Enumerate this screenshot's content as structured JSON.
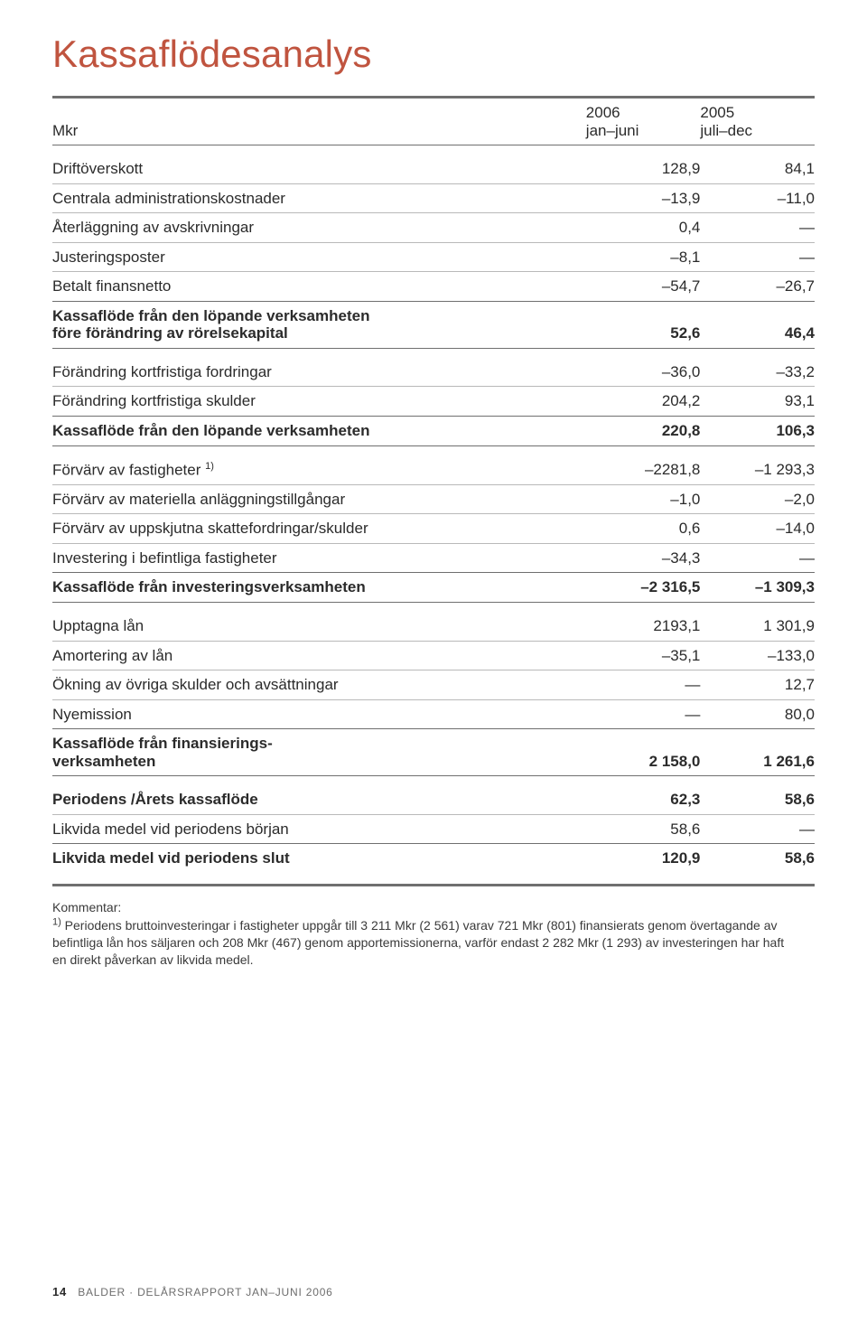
{
  "title_color": "#c0543f",
  "text_color": "#2b2b2b",
  "rule_color": "#6f6f6f",
  "row_rule_color": "#b9b9b9",
  "title": "Kassaflödesanalys",
  "header": {
    "unit": "Mkr",
    "col1_year": "2006",
    "col1_period": "jan–juni",
    "col2_year": "2005",
    "col2_period": "juli–dec"
  },
  "sections": [
    {
      "rows": [
        {
          "label": "Driftöverskott",
          "v1": "128,9",
          "v2": "84,1"
        },
        {
          "label": "Centrala administrationskostnader",
          "v1": "–13,9",
          "v2": "–11,0"
        },
        {
          "label": "Återläggning av avskrivningar",
          "v1": "0,4",
          "v2": "—"
        },
        {
          "label": "Justeringsposter",
          "v1": "–8,1",
          "v2": "—"
        },
        {
          "label": "Betalt finansnetto",
          "v1": "–54,7",
          "v2": "–26,7",
          "block_end": true
        }
      ],
      "subtotal": {
        "label": "Kassaflöde från den löpande verksamheten\nföre förändring av rörelsekapital",
        "v1": "52,6",
        "v2": "46,4"
      }
    },
    {
      "rows": [
        {
          "label": "Förändring kortfristiga fordringar",
          "v1": "–36,0",
          "v2": "–33,2"
        },
        {
          "label": "Förändring kortfristiga skulder",
          "v1": "204,2",
          "v2": "93,1",
          "block_end": true
        }
      ],
      "subtotal": {
        "label": "Kassaflöde från den löpande verksamheten",
        "v1": "220,8",
        "v2": "106,3"
      }
    },
    {
      "rows": [
        {
          "label": "Förvärv av fastigheter",
          "sup": "1)",
          "v1": "–2281,8",
          "v2": "–1 293,3"
        },
        {
          "label": "Förvärv av materiella anläggningstillgångar",
          "v1": "–1,0",
          "v2": "–2,0"
        },
        {
          "label": "Förvärv av uppskjutna skattefordringar/skulder",
          "v1": "0,6",
          "v2": "–14,0"
        },
        {
          "label": "Investering i befintliga fastigheter",
          "v1": "–34,3",
          "v2": "—",
          "block_end": true
        }
      ],
      "subtotal": {
        "label": "Kassaflöde från investeringsverksamheten",
        "v1": "–2 316,5",
        "v2": "–1 309,3"
      }
    },
    {
      "rows": [
        {
          "label": "Upptagna lån",
          "v1": "2193,1",
          "v2": "1 301,9"
        },
        {
          "label": "Amortering av lån",
          "v1": "–35,1",
          "v2": "–133,0"
        },
        {
          "label": "Ökning av övriga skulder och avsättningar",
          "v1": "—",
          "v2": "12,7"
        },
        {
          "label": "Nyemission",
          "v1": "—",
          "v2": "80,0",
          "block_end": true
        }
      ],
      "subtotal": {
        "label": "Kassaflöde från finansierings-\nverksamheten",
        "v1": "2 158,0",
        "v2": "1 261,6"
      }
    },
    {
      "rows": [
        {
          "label": "Periodens /Årets kassaflöde",
          "bold": true,
          "v1": "62,3",
          "v2": "58,6"
        },
        {
          "label": "Likvida medel vid periodens början",
          "v1": "58,6",
          "v2": "—",
          "block_end": true
        }
      ],
      "total": {
        "label": "Likvida medel vid periodens slut",
        "v1": "120,9",
        "v2": "58,6"
      }
    }
  ],
  "footnote": {
    "heading": "Kommentar:",
    "marker": "1)",
    "text": "Periodens bruttoinvesteringar i fastigheter uppgår till 3 211 Mkr (2 561) varav 721 Mkr (801) finansierats genom övertagande av befintliga lån hos säljaren och 208 Mkr (467) genom apportemissionerna, varför endast 2 282 Mkr (1 293) av investeringen har haft en  direkt påverkan av likvida medel."
  },
  "footer": {
    "page": "14",
    "text": "BALDER · DELÅRSRAPPORT JAN–JUNI 2006"
  }
}
